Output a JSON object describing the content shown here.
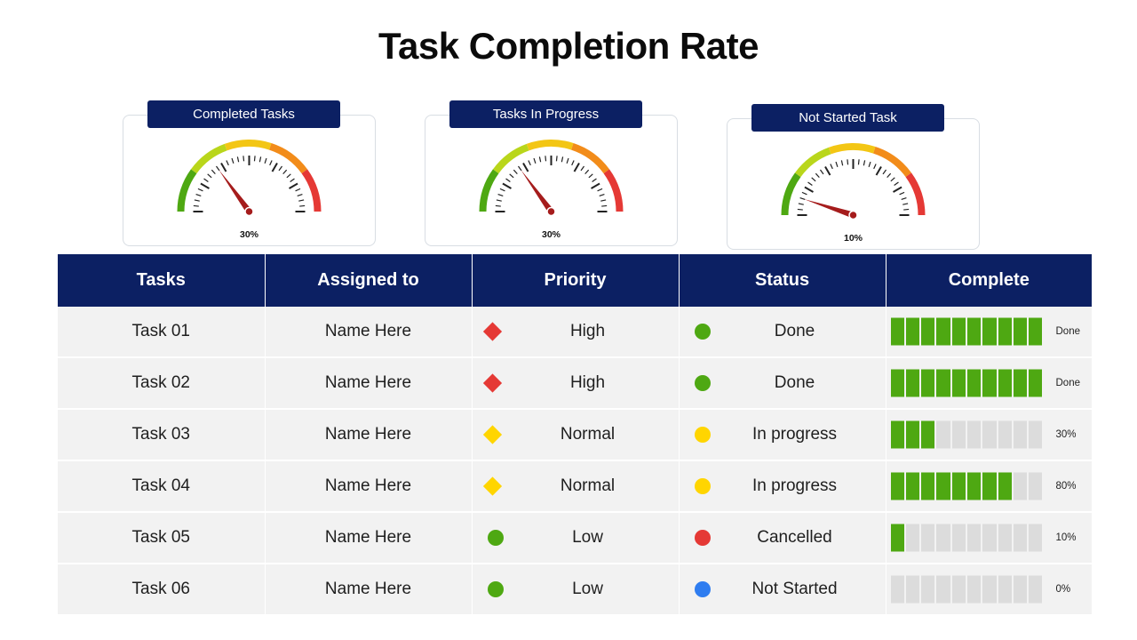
{
  "title": "Task Completion Rate",
  "gauges": [
    {
      "label": "Completed Tasks",
      "value_text": "30%",
      "value": 30
    },
    {
      "label": "Tasks In Progress",
      "value_text": "30%",
      "value": 30
    },
    {
      "label": "Not Started Task",
      "value_text": "10%",
      "value": 10
    }
  ],
  "table": {
    "headers": [
      "Tasks",
      "Assigned to",
      "Priority",
      "Status",
      "Complete"
    ],
    "rows": [
      {
        "task": "Task 01",
        "assigned": "Name Here",
        "priority": "High",
        "priority_shape": "diamond",
        "priority_color": "#e53935",
        "status": "Done",
        "status_color": "#4ea812",
        "complete_text": "Done",
        "complete": 100
      },
      {
        "task": "Task 02",
        "assigned": "Name Here",
        "priority": "High",
        "priority_shape": "diamond",
        "priority_color": "#e53935",
        "status": "Done",
        "status_color": "#4ea812",
        "complete_text": "Done",
        "complete": 100
      },
      {
        "task": "Task 03",
        "assigned": "Name Here",
        "priority": "Normal",
        "priority_shape": "diamond",
        "priority_color": "#ffd500",
        "status": "In progress",
        "status_color": "#ffd500",
        "complete_text": "30%",
        "complete": 30
      },
      {
        "task": "Task 04",
        "assigned": "Name Here",
        "priority": "Normal",
        "priority_shape": "diamond",
        "priority_color": "#ffd500",
        "status": "In progress",
        "status_color": "#ffd500",
        "complete_text": "80%",
        "complete": 80
      },
      {
        "task": "Task 05",
        "assigned": "Name Here",
        "priority": "Low",
        "priority_shape": "circle",
        "priority_color": "#4ea812",
        "status": "Cancelled",
        "status_color": "#e53935",
        "complete_text": "10%",
        "complete": 10
      },
      {
        "task": "Task 06",
        "assigned": "Name Here",
        "priority": "Low",
        "priority_shape": "circle",
        "priority_color": "#4ea812",
        "status": "Not Started",
        "status_color": "#2f7df0",
        "complete_text": "0%",
        "complete": 0
      }
    ]
  },
  "colors": {
    "header_bg": "#0c2063",
    "row_bg": "#f2f2f2",
    "progress_on": "#4ea812",
    "progress_off": "#dcdcdc",
    "needle": "#a51c1c"
  }
}
